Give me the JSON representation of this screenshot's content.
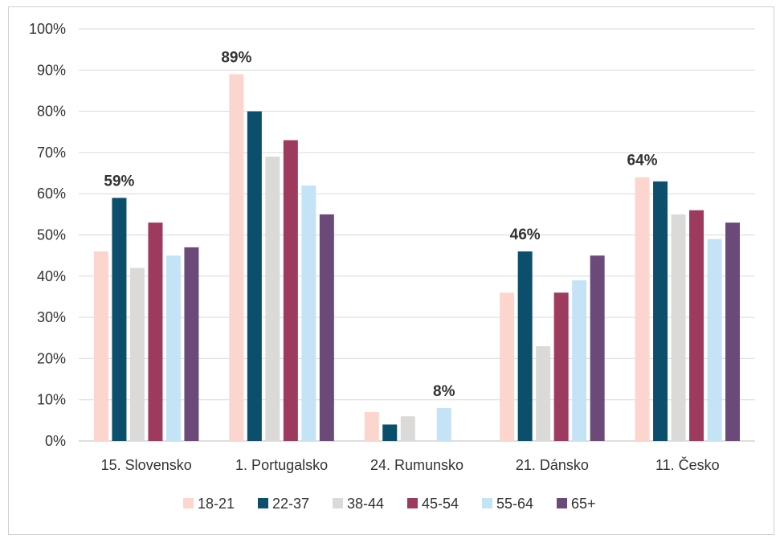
{
  "chart_data": {
    "type": "bar",
    "categories": [
      "15. Slovensko",
      "1. Portugalsko",
      "24. Rumunsko",
      "21. Dánsko",
      "11. Česko"
    ],
    "series": [
      {
        "name": "18-21",
        "color": "#fcd5ce",
        "values": [
          46,
          89,
          7,
          36,
          64
        ]
      },
      {
        "name": "22-37",
        "color": "#0b4f6c",
        "values": [
          59,
          80,
          4,
          46,
          63
        ]
      },
      {
        "name": "38-44",
        "color": "#dcd9d9",
        "values": [
          42,
          69,
          6,
          23,
          55
        ]
      },
      {
        "name": "45-54",
        "color": "#9e3a5e",
        "values": [
          53,
          73,
          null,
          36,
          56
        ]
      },
      {
        "name": "55-64",
        "color": "#c5e3f6",
        "values": [
          45,
          62,
          8,
          39,
          49
        ]
      },
      {
        "name": "65+",
        "color": "#6b4a7a",
        "values": [
          47,
          55,
          null,
          45,
          53
        ]
      }
    ],
    "annotations": [
      {
        "category": "15. Slovensko",
        "text": "59%"
      },
      {
        "category": "1. Portugalsko",
        "text": "89%"
      },
      {
        "category": "24. Rumunsko",
        "text": "8%"
      },
      {
        "category": "21. Dánsko",
        "text": "46%"
      },
      {
        "category": "11. Česko",
        "text": "64%"
      }
    ],
    "y_ticks": [
      "0%",
      "10%",
      "20%",
      "30%",
      "40%",
      "50%",
      "60%",
      "70%",
      "80%",
      "90%",
      "100%"
    ],
    "ylim": [
      0,
      100
    ],
    "grid": true,
    "legend_position": "bottom",
    "title": "",
    "xlabel": "",
    "ylabel": ""
  }
}
